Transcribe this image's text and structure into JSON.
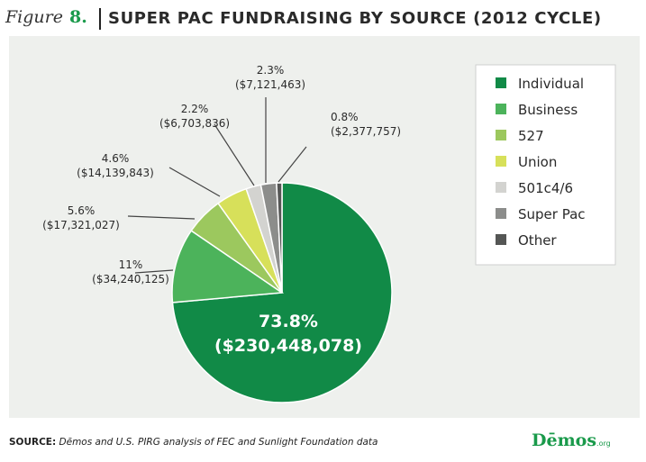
{
  "header": {
    "figure_word": "Figure",
    "figure_number": "8.",
    "title": "SUPER PAC FUNDRAISING BY SOURCE (2012 CYCLE)"
  },
  "colors": {
    "background_panel": "#eef0ed",
    "accent_green": "#1a9a4b",
    "text_dark": "#2a2a2a",
    "leader_line": "#444444"
  },
  "chart_data": {
    "type": "pie",
    "legend_position": "right",
    "slices": [
      {
        "name": "Individual",
        "percent": 73.8,
        "percent_label": "73.8%",
        "amount_label": "($230,448,078)",
        "color": "#118a47"
      },
      {
        "name": "Business",
        "percent": 11,
        "percent_label": "11%",
        "amount_label": "($34,240,125)",
        "color": "#4cb35b"
      },
      {
        "name": "527",
        "percent": 5.6,
        "percent_label": "5.6%",
        "amount_label": "($17,321,027)",
        "color": "#9cc85e"
      },
      {
        "name": "Union",
        "percent": 4.6,
        "percent_label": "4.6%",
        "amount_label": "($14,139,843)",
        "color": "#d7e05a"
      },
      {
        "name": "501c4/6",
        "percent": 2.2,
        "percent_label": "2.2%",
        "amount_label": "($6,703,836)",
        "color": "#d3d3d0"
      },
      {
        "name": "Super Pac",
        "percent": 2.3,
        "percent_label": "2.3%",
        "amount_label": "($7,121,463)",
        "color": "#8c8d8b"
      },
      {
        "name": "Other",
        "percent": 0.8,
        "percent_label": "0.8%",
        "amount_label": "($2,377,757)",
        "color": "#555655"
      }
    ]
  },
  "footer": {
    "source_label": "SOURCE:",
    "source_text": " Dēmos and U.S. PIRG analysis of FEC and Sunlight Foundation data",
    "logo_text": "Dēmos",
    "logo_suffix": ".org"
  }
}
